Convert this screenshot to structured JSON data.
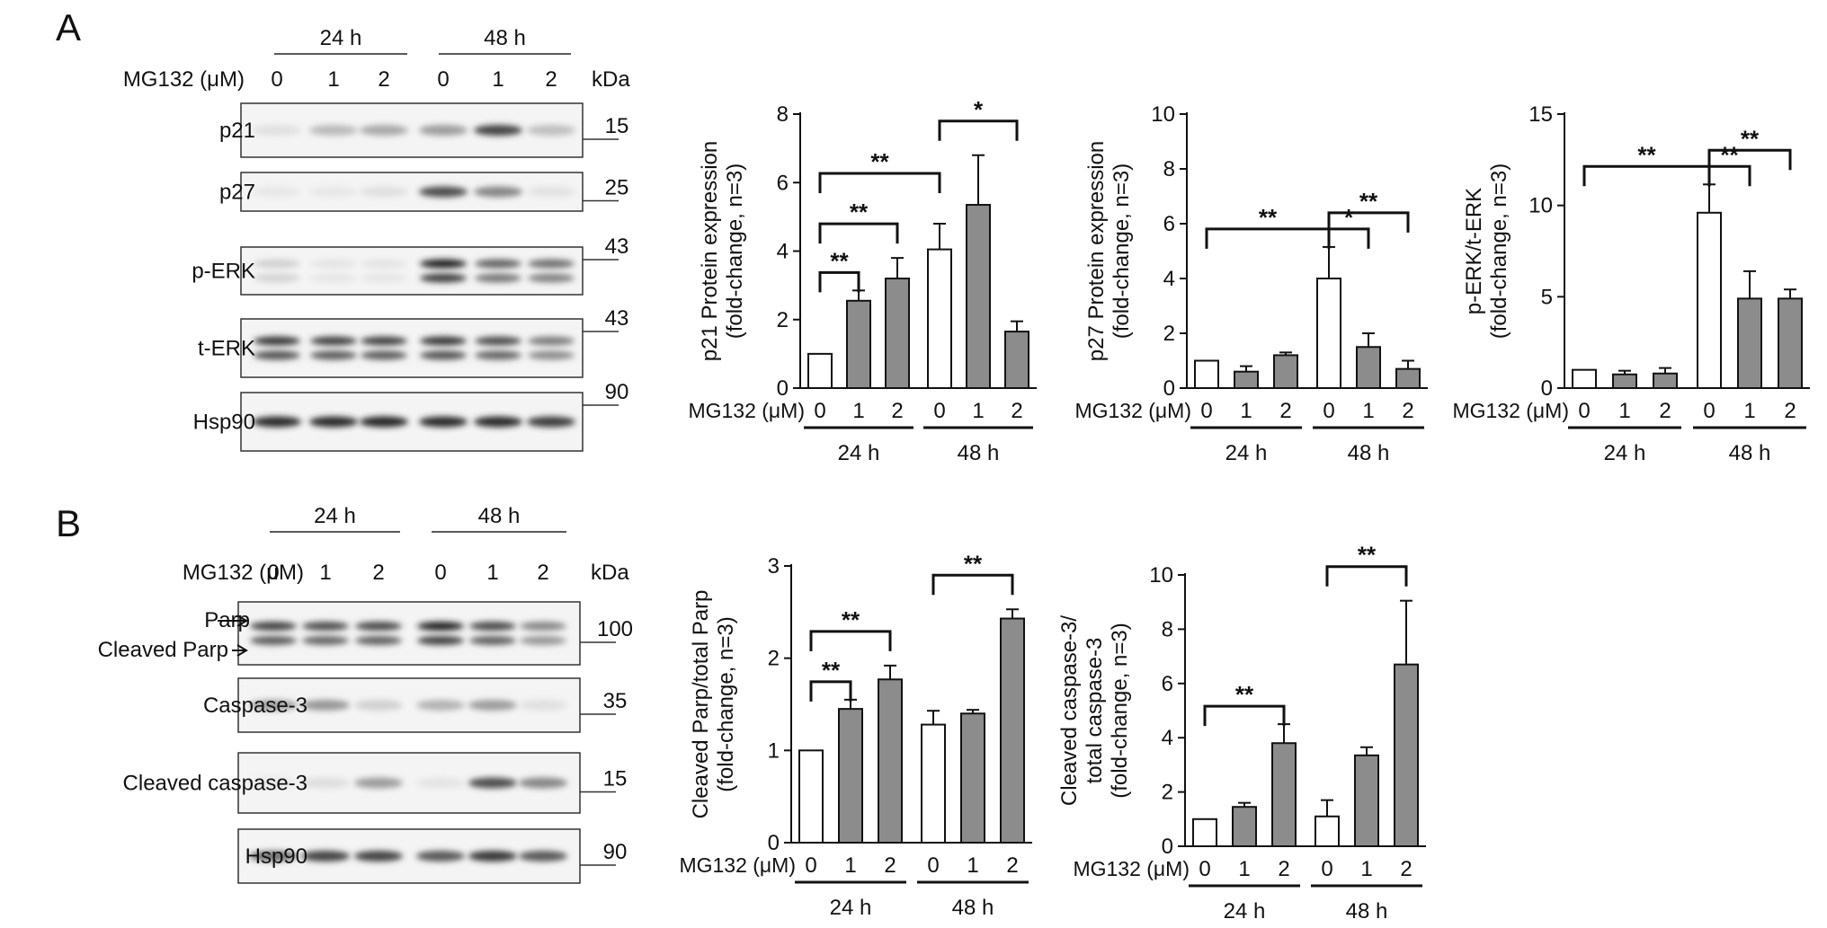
{
  "panels": [
    {
      "label": "A",
      "blot": {
        "time_groups": [
          "24 h",
          "48 h"
        ],
        "treatment_label": "MG132 (μM)",
        "doses": [
          "0",
          "1",
          "2",
          "0",
          "1",
          "2"
        ],
        "kda_label": "kDa",
        "rows": [
          {
            "name": "p21",
            "kda": "15",
            "intensities": [
              0.05,
              0.22,
              0.3,
              0.35,
              0.75,
              0.2
            ],
            "double": false
          },
          {
            "name": "p27",
            "kda": "25",
            "intensities": [
              0.02,
              0.02,
              0.05,
              0.7,
              0.45,
              0.04
            ],
            "double": false
          },
          {
            "name": "p-ERK",
            "kda": "43",
            "intensities": [
              0.12,
              0.03,
              0.03,
              0.9,
              0.6,
              0.55
            ],
            "double": true
          },
          {
            "name": "t-ERK",
            "kda": "43",
            "intensities": [
              0.8,
              0.75,
              0.75,
              0.8,
              0.7,
              0.5
            ],
            "double": true
          },
          {
            "name": "Hsp90",
            "kda": "90",
            "intensities": [
              0.85,
              0.85,
              0.88,
              0.85,
              0.85,
              0.78
            ],
            "double": false
          }
        ]
      }
    },
    {
      "label": "B",
      "blot": {
        "time_groups": [
          "24 h",
          "48 h"
        ],
        "treatment_label": "MG132 (μM)",
        "doses": [
          "0",
          "1",
          "2",
          "0",
          "1",
          "2"
        ],
        "kda_label": "kDa",
        "rows": [
          {
            "name": "Parp",
            "name2": "Cleaved Parp",
            "kda": "100",
            "intensities": [
              0.75,
              0.7,
              0.72,
              0.9,
              0.72,
              0.45
            ],
            "double": true
          },
          {
            "name": "Caspase-3",
            "kda": "35",
            "intensities": [
              0.35,
              0.38,
              0.12,
              0.25,
              0.35,
              0.05
            ],
            "double": false
          },
          {
            "name": "Cleaved caspase-3",
            "kda": "15",
            "intensities": [
              0.02,
              0.06,
              0.35,
              0.03,
              0.7,
              0.45
            ],
            "double": false
          },
          {
            "name": "Hsp90",
            "kda": "90",
            "intensities": [
              0.55,
              0.75,
              0.75,
              0.65,
              0.8,
              0.65
            ],
            "double": false
          }
        ]
      }
    }
  ],
  "chart_data": [
    {
      "type": "bar",
      "panel": "A",
      "ylabel_lines": [
        "p21 Protein expression",
        "(fold-change, n=3)"
      ],
      "ylim": [
        0,
        8
      ],
      "yticks": [
        0,
        2,
        4,
        6,
        8
      ],
      "x_label": "MG132 (μM)",
      "categories": [
        "0",
        "1",
        "2",
        "0",
        "1",
        "2"
      ],
      "groups": [
        "24 h",
        "48 h"
      ],
      "values": [
        1.0,
        2.55,
        3.2,
        4.05,
        5.35,
        1.65
      ],
      "errors": [
        0,
        0.3,
        0.6,
        0.75,
        1.45,
        0.3
      ],
      "fill": [
        "white",
        "gray",
        "gray",
        "white",
        "gray",
        "gray"
      ],
      "significance": [
        {
          "from": 0,
          "to": 1,
          "level": 1,
          "label": "**"
        },
        {
          "from": 0,
          "to": 2,
          "level": 2,
          "label": "**"
        },
        {
          "from": 0,
          "to": 3,
          "level": 3,
          "label": "**"
        },
        {
          "from": 3,
          "to": 5,
          "level": 2,
          "label": "*"
        }
      ]
    },
    {
      "type": "bar",
      "panel": "A",
      "ylabel_lines": [
        "p27 Protein expression",
        "(fold-change, n=3)"
      ],
      "ylim": [
        0,
        10
      ],
      "yticks": [
        0,
        2,
        4,
        6,
        8,
        10
      ],
      "x_label": "MG132 (μM)",
      "categories": [
        "0",
        "1",
        "2",
        "0",
        "1",
        "2"
      ],
      "groups": [
        "24 h",
        "48 h"
      ],
      "values": [
        1.0,
        0.6,
        1.2,
        4.0,
        1.5,
        0.7
      ],
      "errors": [
        0,
        0.2,
        0.1,
        1.15,
        0.5,
        0.3
      ],
      "fill": [
        "white",
        "gray",
        "gray",
        "white",
        "gray",
        "gray"
      ],
      "significance": [
        {
          "from": 0,
          "to": 3,
          "level": 1,
          "label": "**"
        },
        {
          "from": 3,
          "to": 4,
          "level": 1,
          "label": "*"
        },
        {
          "from": 3,
          "to": 5,
          "level": 2,
          "label": "**"
        }
      ]
    },
    {
      "type": "bar",
      "panel": "A",
      "ylabel_lines": [
        "p-ERK/t-ERK",
        "(fold-change, n=3)"
      ],
      "ylim": [
        0,
        15
      ],
      "yticks": [
        0,
        5,
        10,
        15
      ],
      "x_label": "MG132 (μM)",
      "categories": [
        "0",
        "1",
        "2",
        "0",
        "1",
        "2"
      ],
      "groups": [
        "24 h",
        "48 h"
      ],
      "values": [
        1.0,
        0.75,
        0.8,
        9.6,
        4.9,
        4.9
      ],
      "errors": [
        0,
        0.2,
        0.3,
        1.55,
        1.5,
        0.5
      ],
      "fill": [
        "white",
        "gray",
        "gray",
        "white",
        "gray",
        "gray"
      ],
      "significance": [
        {
          "from": 0,
          "to": 3,
          "level": 1,
          "label": "**"
        },
        {
          "from": 3,
          "to": 4,
          "level": 1,
          "label": "**"
        },
        {
          "from": 3,
          "to": 5,
          "level": 2,
          "label": "**"
        }
      ]
    },
    {
      "type": "bar",
      "panel": "B",
      "ylabel_lines": [
        "Cleaved Parp/total Parp",
        "(fold-change, n=3)"
      ],
      "ylim": [
        0,
        3
      ],
      "yticks": [
        0,
        1,
        2,
        3
      ],
      "x_label": "MG132 (μM)",
      "categories": [
        "0",
        "1",
        "2",
        "0",
        "1",
        "2"
      ],
      "groups": [
        "24 h",
        "48 h"
      ],
      "values": [
        1.0,
        1.45,
        1.77,
        1.28,
        1.4,
        2.43
      ],
      "errors": [
        0,
        0.1,
        0.15,
        0.15,
        0.04,
        0.1
      ],
      "fill": [
        "white",
        "gray",
        "gray",
        "white",
        "gray",
        "gray"
      ],
      "significance": [
        {
          "from": 0,
          "to": 1,
          "level": 1,
          "label": "**"
        },
        {
          "from": 0,
          "to": 2,
          "level": 2,
          "label": "**"
        },
        {
          "from": 3,
          "to": 5,
          "level": 2,
          "label": "**"
        }
      ]
    },
    {
      "type": "bar",
      "panel": "B",
      "ylabel_lines": [
        "Cleaved caspase-3/",
        "total caspase-3",
        "(fold-change, n=3)"
      ],
      "ylim": [
        0,
        10
      ],
      "yticks": [
        0,
        2,
        4,
        6,
        8,
        10
      ],
      "x_label": "MG132 (μM)",
      "categories": [
        "0",
        "1",
        "2",
        "0",
        "1",
        "2"
      ],
      "groups": [
        "24 h",
        "48 h"
      ],
      "values": [
        1.0,
        1.45,
        3.8,
        1.1,
        3.35,
        6.7
      ],
      "errors": [
        0,
        0.15,
        0.7,
        0.6,
        0.3,
        2.35
      ],
      "fill": [
        "white",
        "gray",
        "gray",
        "white",
        "gray",
        "gray"
      ],
      "significance": [
        {
          "from": 0,
          "to": 2,
          "level": 1,
          "label": "**"
        },
        {
          "from": 3,
          "to": 5,
          "level": 2,
          "label": "**"
        }
      ]
    }
  ]
}
